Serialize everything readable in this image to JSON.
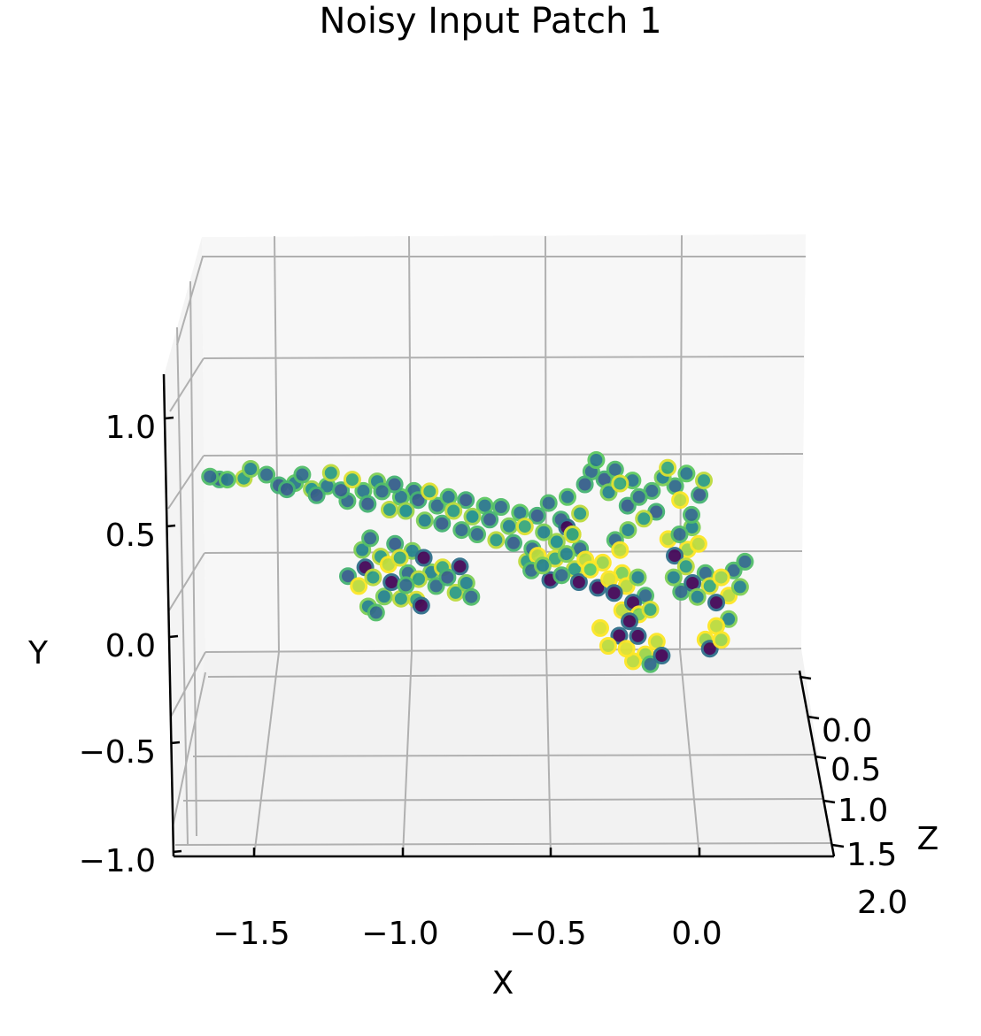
{
  "chart_data": {
    "type": "scatter",
    "title": "Noisy Input Patch 1",
    "xlabel": "X",
    "ylabel": "Y",
    "zlabel": "Z",
    "x_ticks": [
      "−1.5",
      "−1.0",
      "−0.5",
      "0.0"
    ],
    "y_ticks": [
      "−1.0",
      "−0.5",
      "0.0",
      "0.5",
      "1.0"
    ],
    "z_ticks": [
      "0.0",
      "0.5",
      "1.0",
      "1.5",
      "2.0"
    ],
    "xlim": [
      -1.8,
      0.35
    ],
    "ylim": [
      -1.0,
      1.2
    ],
    "zlim": [
      0.0,
      2.0
    ],
    "grid": true,
    "colormap": "viridis",
    "colors": {
      "pane_back": "#f7f7f7",
      "pane_floor": "#f2f2f2",
      "pane_side": "#f4f4f4",
      "grid": "#b0b0b0"
    },
    "points": [
      [
        -1.66,
        0.92,
        0.5,
        0.35
      ],
      [
        -1.63,
        0.91,
        0.6,
        0.3
      ],
      [
        -1.6,
        0.9,
        0.4,
        0.4
      ],
      [
        -1.55,
        0.92,
        0.7,
        0.55
      ],
      [
        -1.52,
        0.95,
        0.3,
        0.45
      ],
      [
        -1.47,
        0.93,
        0.5,
        0.35
      ],
      [
        -1.43,
        0.88,
        0.6,
        0.3
      ],
      [
        -1.4,
        0.85,
        0.4,
        0.3
      ],
      [
        -1.38,
        0.9,
        0.8,
        0.4
      ],
      [
        -1.35,
        0.93,
        0.5,
        0.35
      ],
      [
        -1.32,
        0.86,
        0.6,
        0.5
      ],
      [
        -1.3,
        0.82,
        0.4,
        0.3
      ],
      [
        -1.27,
        0.88,
        0.7,
        0.4
      ],
      [
        -1.25,
        0.93,
        0.3,
        0.55
      ],
      [
        -1.22,
        0.85,
        0.5,
        0.3
      ],
      [
        -1.2,
        0.8,
        0.6,
        0.35
      ],
      [
        -1.18,
        0.9,
        0.4,
        0.6
      ],
      [
        -1.15,
        0.86,
        0.8,
        0.4
      ],
      [
        -1.13,
        0.78,
        0.5,
        0.3
      ],
      [
        -1.1,
        0.9,
        0.6,
        0.45
      ],
      [
        -1.08,
        0.84,
        0.4,
        0.35
      ],
      [
        -1.06,
        0.76,
        0.7,
        0.55
      ],
      [
        -1.04,
        0.88,
        0.5,
        0.3
      ],
      [
        -1.02,
        0.82,
        0.6,
        0.4
      ],
      [
        -1.0,
        0.74,
        0.4,
        0.5
      ],
      [
        -0.98,
        0.86,
        0.8,
        0.35
      ],
      [
        -0.96,
        0.8,
        0.5,
        0.3
      ],
      [
        -0.94,
        0.7,
        0.6,
        0.45
      ],
      [
        -0.92,
        0.84,
        0.4,
        0.6
      ],
      [
        -0.9,
        0.78,
        0.7,
        0.35
      ],
      [
        -0.88,
        0.68,
        0.5,
        0.3
      ],
      [
        -0.86,
        0.82,
        0.6,
        0.4
      ],
      [
        -0.84,
        0.74,
        0.4,
        0.55
      ],
      [
        -0.82,
        0.66,
        0.8,
        0.35
      ],
      [
        -0.8,
        0.8,
        0.5,
        0.3
      ],
      [
        -0.78,
        0.72,
        0.6,
        0.5
      ],
      [
        -0.76,
        0.62,
        0.4,
        0.35
      ],
      [
        -0.74,
        0.78,
        0.7,
        0.4
      ],
      [
        -0.72,
        0.7,
        0.5,
        0.3
      ],
      [
        -0.7,
        0.6,
        0.6,
        0.55
      ],
      [
        -0.68,
        0.76,
        0.4,
        0.35
      ],
      [
        -0.66,
        0.68,
        0.8,
        0.45
      ],
      [
        -0.64,
        0.58,
        0.5,
        0.3
      ],
      [
        -0.62,
        0.74,
        0.6,
        0.4
      ],
      [
        -0.6,
        0.66,
        0.4,
        0.6
      ],
      [
        -0.58,
        0.56,
        0.7,
        0.35
      ],
      [
        -0.56,
        0.72,
        0.5,
        0.3
      ],
      [
        -0.54,
        0.64,
        0.6,
        0.45
      ],
      [
        -0.52,
        0.78,
        0.4,
        0.35
      ],
      [
        -0.5,
        0.6,
        0.8,
        0.5
      ],
      [
        -0.48,
        0.7,
        0.5,
        0.3
      ],
      [
        -0.46,
        0.82,
        0.6,
        0.4
      ],
      [
        -0.44,
        0.62,
        0.4,
        0.35
      ],
      [
        -0.42,
        0.74,
        0.7,
        0.55
      ],
      [
        -0.4,
        0.88,
        0.5,
        0.3
      ],
      [
        -0.38,
        0.95,
        0.6,
        0.35
      ],
      [
        -0.36,
        1.0,
        0.4,
        0.4
      ],
      [
        -0.34,
        0.92,
        0.8,
        0.3
      ],
      [
        -0.32,
        0.84,
        0.5,
        0.45
      ],
      [
        -0.3,
        0.96,
        0.6,
        0.35
      ],
      [
        -0.28,
        0.88,
        0.4,
        0.6
      ],
      [
        -0.26,
        0.78,
        0.7,
        0.3
      ],
      [
        -0.24,
        0.9,
        0.5,
        0.4
      ],
      [
        -0.22,
        0.82,
        0.6,
        0.35
      ],
      [
        -0.2,
        0.7,
        0.4,
        0.55
      ],
      [
        -0.18,
        0.86,
        0.8,
        0.35
      ],
      [
        -0.16,
        0.74,
        0.5,
        0.3
      ],
      [
        -0.14,
        0.92,
        0.6,
        0.45
      ],
      [
        -0.12,
        0.96,
        0.4,
        0.6
      ],
      [
        -0.1,
        0.88,
        0.7,
        0.35
      ],
      [
        -0.08,
        0.8,
        0.5,
        0.9
      ],
      [
        -0.06,
        0.94,
        0.6,
        0.4
      ],
      [
        -0.04,
        0.72,
        0.4,
        0.35
      ],
      [
        -0.02,
        0.84,
        0.8,
        0.3
      ],
      [
        0.0,
        0.9,
        0.5,
        0.55
      ],
      [
        -1.15,
        0.55,
        0.6,
        0.45
      ],
      [
        -1.12,
        0.6,
        0.4,
        0.35
      ],
      [
        -1.09,
        0.52,
        0.7,
        0.55
      ],
      [
        -1.06,
        0.47,
        0.5,
        0.9
      ],
      [
        -1.04,
        0.58,
        0.6,
        0.3
      ],
      [
        -1.02,
        0.5,
        0.4,
        0.6
      ],
      [
        -1.0,
        0.44,
        0.8,
        0.35
      ],
      [
        -0.98,
        0.54,
        0.5,
        0.45
      ],
      [
        -0.96,
        0.4,
        0.6,
        0.55
      ],
      [
        -0.94,
        0.5,
        0.4,
        0.02
      ],
      [
        -0.92,
        0.44,
        0.7,
        0.45
      ],
      [
        -0.9,
        0.36,
        0.5,
        0.35
      ],
      [
        -0.88,
        0.46,
        0.6,
        0.6
      ],
      [
        -0.86,
        0.4,
        0.4,
        0.3
      ],
      [
        -0.84,
        0.34,
        0.8,
        0.55
      ],
      [
        -0.82,
        0.46,
        0.5,
        0.02
      ],
      [
        -0.8,
        0.38,
        0.6,
        0.45
      ],
      [
        -0.78,
        0.3,
        0.4,
        0.35
      ],
      [
        -1.2,
        0.42,
        0.7,
        0.3
      ],
      [
        -1.16,
        0.36,
        0.5,
        0.9
      ],
      [
        -1.14,
        0.46,
        0.6,
        0.02
      ],
      [
        -1.11,
        0.4,
        0.4,
        0.55
      ],
      [
        -1.08,
        0.32,
        0.8,
        0.45
      ],
      [
        -1.05,
        0.38,
        0.5,
        0.02
      ],
      [
        -1.02,
        0.3,
        0.6,
        0.55
      ],
      [
        -1.0,
        0.36,
        0.4,
        0.35
      ],
      [
        -0.97,
        0.3,
        0.7,
        0.6
      ],
      [
        -0.95,
        0.26,
        0.5,
        0.02
      ],
      [
        -1.13,
        0.26,
        0.6,
        0.45
      ],
      [
        -1.1,
        0.22,
        0.4,
        0.35
      ],
      [
        -0.6,
        0.5,
        0.8,
        0.55
      ],
      [
        -0.58,
        0.44,
        0.5,
        0.35
      ],
      [
        -0.56,
        0.52,
        0.6,
        0.9
      ],
      [
        -0.54,
        0.46,
        0.4,
        0.45
      ],
      [
        -0.52,
        0.4,
        0.7,
        0.02
      ],
      [
        -0.5,
        0.5,
        0.5,
        0.6
      ],
      [
        -0.48,
        0.42,
        0.6,
        0.35
      ],
      [
        -0.46,
        0.52,
        0.4,
        0.45
      ],
      [
        -0.44,
        0.46,
        0.8,
        0.55
      ],
      [
        -0.42,
        0.38,
        0.5,
        0.02
      ],
      [
        -0.4,
        0.5,
        0.6,
        0.9
      ],
      [
        -0.38,
        0.44,
        0.4,
        0.75
      ],
      [
        -0.36,
        0.36,
        0.7,
        0.02
      ],
      [
        -0.34,
        0.48,
        0.5,
        0.85
      ],
      [
        -0.32,
        0.4,
        0.6,
        0.95
      ],
      [
        -0.3,
        0.32,
        0.4,
        0.02
      ],
      [
        -0.28,
        0.44,
        0.8,
        0.8
      ],
      [
        -0.26,
        0.36,
        0.5,
        0.9
      ],
      [
        -0.24,
        0.28,
        0.6,
        0.02
      ],
      [
        -0.22,
        0.4,
        0.4,
        0.45
      ],
      [
        -0.2,
        0.32,
        0.7,
        0.35
      ],
      [
        -0.18,
        0.24,
        0.5,
        0.6
      ],
      [
        -0.35,
        0.15,
        0.6,
        0.95
      ],
      [
        -0.32,
        0.05,
        0.4,
        0.9
      ],
      [
        -0.29,
        0.12,
        0.8,
        0.02
      ],
      [
        -0.26,
        0.04,
        0.5,
        0.95
      ],
      [
        -0.24,
        -0.02,
        0.6,
        0.9
      ],
      [
        -0.22,
        0.1,
        0.4,
        0.02
      ],
      [
        -0.2,
        0.02,
        0.7,
        0.85
      ],
      [
        -0.18,
        -0.04,
        0.5,
        0.35
      ],
      [
        -0.16,
        0.08,
        0.6,
        0.9
      ],
      [
        -0.14,
        0.0,
        0.4,
        0.02
      ],
      [
        -0.28,
        0.25,
        0.8,
        0.9
      ],
      [
        -0.25,
        0.18,
        0.5,
        0.02
      ],
      [
        -0.22,
        0.22,
        0.6,
        0.8
      ],
      [
        -0.1,
        0.4,
        0.4,
        0.45
      ],
      [
        -0.08,
        0.34,
        0.7,
        0.35
      ],
      [
        -0.06,
        0.46,
        0.5,
        0.55
      ],
      [
        -0.04,
        0.38,
        0.6,
        0.02
      ],
      [
        -0.02,
        0.3,
        0.4,
        0.45
      ],
      [
        0.0,
        0.44,
        0.8,
        0.35
      ],
      [
        0.02,
        0.36,
        0.5,
        0.6
      ],
      [
        0.04,
        0.28,
        0.6,
        0.02
      ],
      [
        0.06,
        0.4,
        0.4,
        0.85
      ],
      [
        0.08,
        0.32,
        0.7,
        0.9
      ],
      [
        0.1,
        0.44,
        0.5,
        0.35
      ],
      [
        0.12,
        0.36,
        0.6,
        0.45
      ],
      [
        0.14,
        0.48,
        0.4,
        0.35
      ],
      [
        0.0,
        0.1,
        0.8,
        0.85
      ],
      [
        0.02,
        0.04,
        0.5,
        0.02
      ],
      [
        0.04,
        0.16,
        0.6,
        0.9
      ],
      [
        0.06,
        0.08,
        0.4,
        0.85
      ],
      [
        0.08,
        0.2,
        0.7,
        0.45
      ],
      [
        -0.12,
        0.6,
        0.5,
        0.9
      ],
      [
        -0.1,
        0.52,
        0.6,
        0.02
      ],
      [
        -0.08,
        0.62,
        0.4,
        0.35
      ],
      [
        -0.06,
        0.56,
        0.8,
        0.85
      ],
      [
        -0.04,
        0.66,
        0.5,
        0.45
      ],
      [
        -0.02,
        0.58,
        0.6,
        0.9
      ],
      [
        -0.44,
        0.62,
        0.4,
        0.6
      ],
      [
        -0.42,
        0.56,
        0.7,
        0.35
      ],
      [
        -0.46,
        0.66,
        0.5,
        0.02
      ],
      [
        -0.3,
        0.6,
        0.6,
        0.35
      ],
      [
        -0.28,
        0.54,
        0.4,
        0.9
      ],
      [
        -0.26,
        0.66,
        0.8,
        0.45
      ]
    ]
  }
}
